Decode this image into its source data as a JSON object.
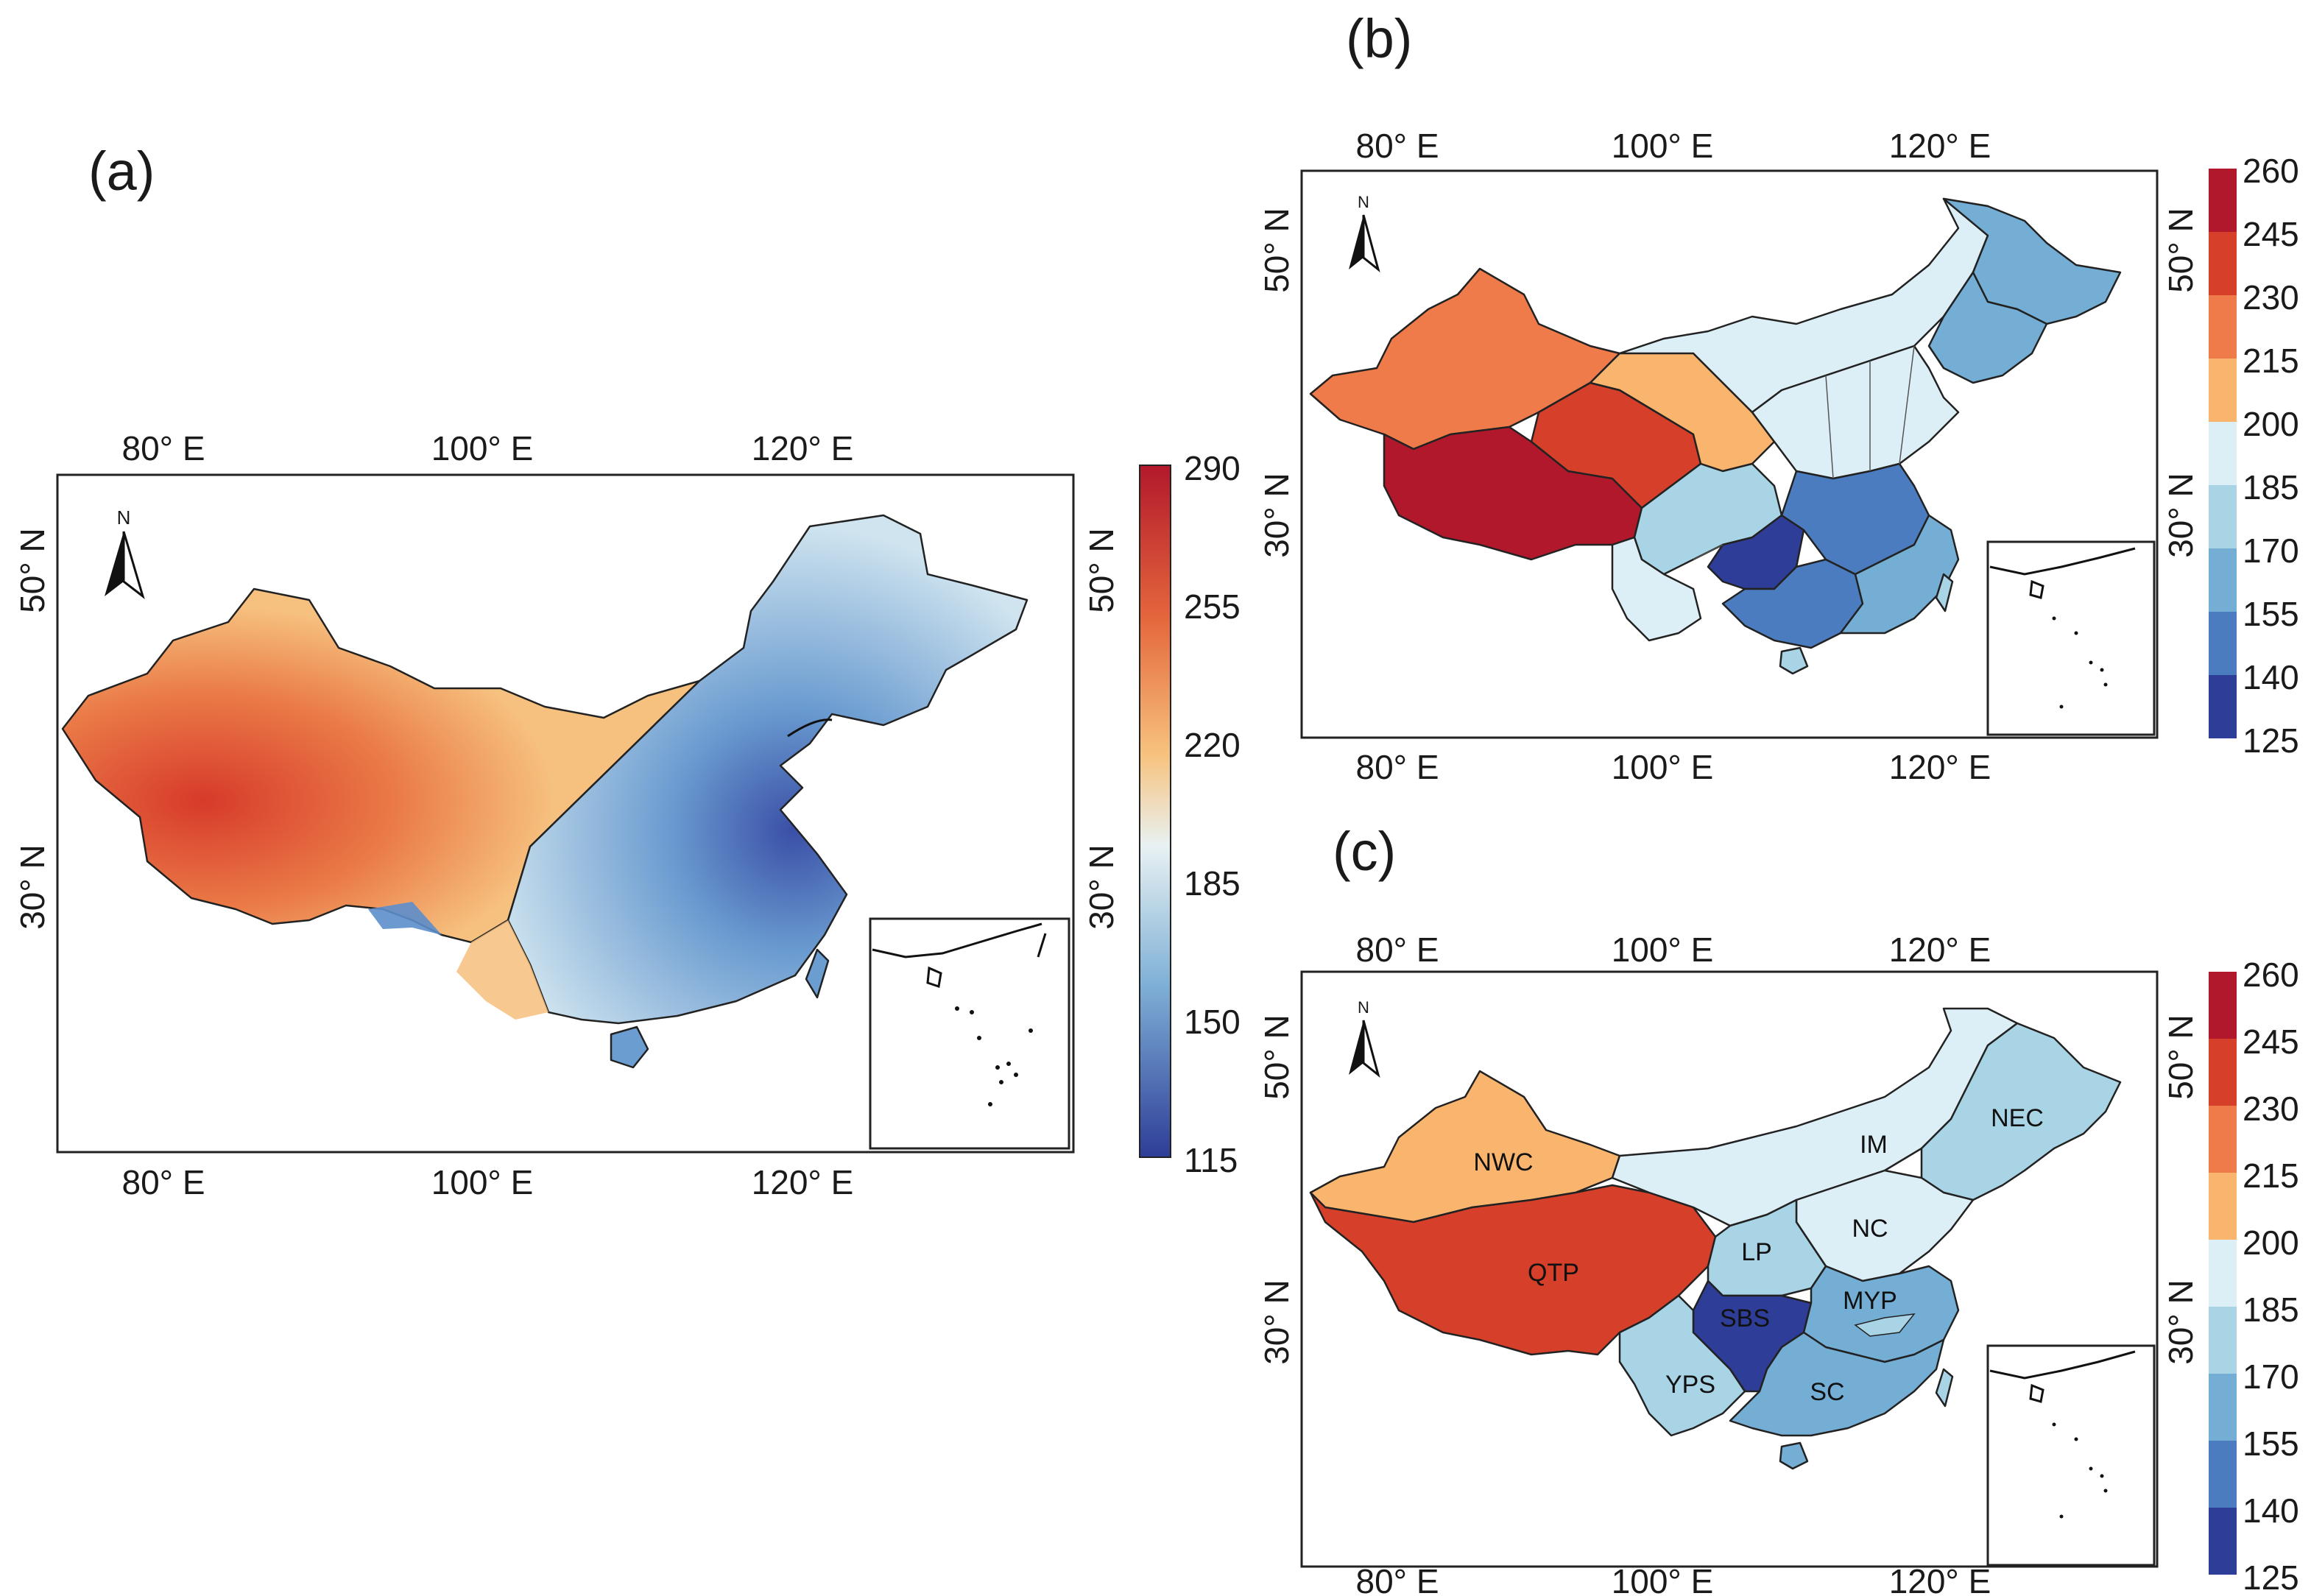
{
  "panels": {
    "a": {
      "letter": "(a)",
      "lon_ticks": [
        "80° E",
        "100° E",
        "120° E"
      ],
      "lat_ticks": [
        "50° N",
        "30° N"
      ],
      "north_label": "N",
      "colorbar": {
        "ticks": [
          "290",
          "255",
          "220",
          "185",
          "150",
          "115"
        ],
        "min": 115,
        "max": 290
      }
    },
    "b": {
      "letter": "(b)",
      "lon_ticks": [
        "80° E",
        "100° E",
        "120° E"
      ],
      "lat_ticks": [
        "50° N",
        "30° N"
      ],
      "north_label": "N",
      "colorbar": {
        "ticks": [
          "260",
          "245",
          "230",
          "215",
          "200",
          "185",
          "170",
          "155",
          "140",
          "125"
        ],
        "classes": [
          "#b2182b",
          "#d6402a",
          "#f07b4a",
          "#f9b56e",
          "#ddeff6",
          "#a8d4e6",
          "#75aed4",
          "#4b7cbf",
          "#2e3d97"
        ]
      }
    },
    "c": {
      "letter": "(c)",
      "lon_ticks": [
        "80° E",
        "100° E",
        "120° E"
      ],
      "lat_ticks": [
        "50° N",
        "30° N"
      ],
      "north_label": "N",
      "colorbar": {
        "ticks": [
          "260",
          "245",
          "230",
          "215",
          "200",
          "185",
          "170",
          "155",
          "140",
          "125"
        ]
      },
      "regions": [
        {
          "code": "NWC",
          "color": "#f9b56e"
        },
        {
          "code": "QTP",
          "color": "#d6402a"
        },
        {
          "code": "IM",
          "color": "#ddeff6"
        },
        {
          "code": "NEC",
          "color": "#a8d4e6"
        },
        {
          "code": "NC",
          "color": "#ddeff6"
        },
        {
          "code": "LP",
          "color": "#a8d4e6"
        },
        {
          "code": "SBS",
          "color": "#2e3d97"
        },
        {
          "code": "MYP",
          "color": "#75aed4"
        },
        {
          "code": "YPS",
          "color": "#a8d4e6"
        },
        {
          "code": "SC",
          "color": "#75aed4"
        }
      ]
    }
  }
}
